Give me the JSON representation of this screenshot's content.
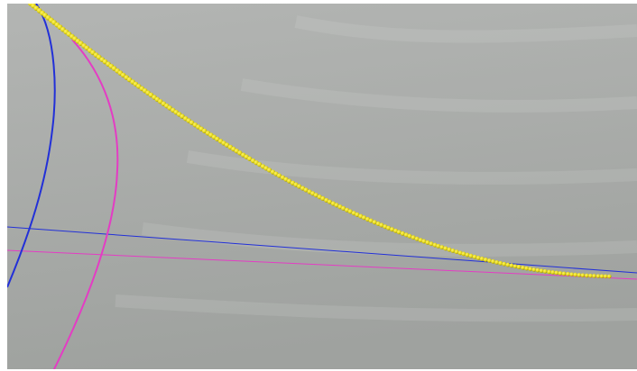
{
  "scene": {
    "background_top": "#b3b5b3",
    "background_bottom": "#9fa29f",
    "blue": "#2230d8",
    "magenta": "#e43cc4",
    "yellow": "#e8dc1e",
    "yellow_highlight": "#fff36a",
    "yellow_shadow": "#9a8f08"
  },
  "objects": [
    {
      "name": "blue-line",
      "label": ""
    },
    {
      "name": "magenta-line",
      "label": ""
    },
    {
      "name": "blue-curve",
      "label": ""
    },
    {
      "name": "magenta-curve",
      "label": ""
    },
    {
      "name": "yellow-bead-chain",
      "label": ""
    }
  ]
}
